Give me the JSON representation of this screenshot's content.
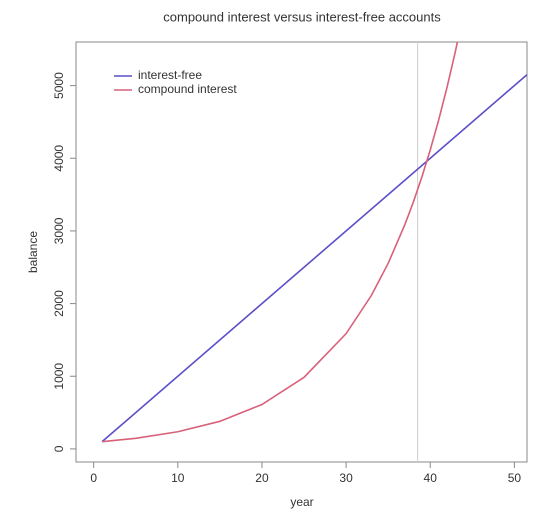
{
  "chart_data": {
    "type": "line",
    "title": "compound interest versus interest-free accounts",
    "xlabel": "year",
    "ylabel": "balance",
    "series": [
      {
        "name": "interest-free",
        "color": "#5a4fc8",
        "x": [
          1,
          52
        ],
        "values": [
          100,
          5200
        ]
      },
      {
        "name": "compound interest",
        "color": "#d9607a",
        "x": [
          1,
          5,
          10,
          15,
          20,
          25,
          30,
          33,
          35,
          37,
          38,
          39,
          40,
          41,
          42,
          43,
          44
        ],
        "values": [
          100,
          146,
          236,
          380,
          611,
          985,
          1586,
          2111,
          2554,
          3091,
          3400,
          3740,
          4114,
          4526,
          4978,
          5476,
          6024
        ]
      }
    ],
    "vline": 38.5,
    "xlim": [
      -2.1,
      51.5
    ],
    "ylim": [
      -180,
      5600
    ],
    "xticks": [
      0,
      10,
      20,
      30,
      40,
      50
    ],
    "yticks": [
      0,
      1000,
      2000,
      3000,
      4000,
      5000
    ],
    "legend": "top-left"
  }
}
